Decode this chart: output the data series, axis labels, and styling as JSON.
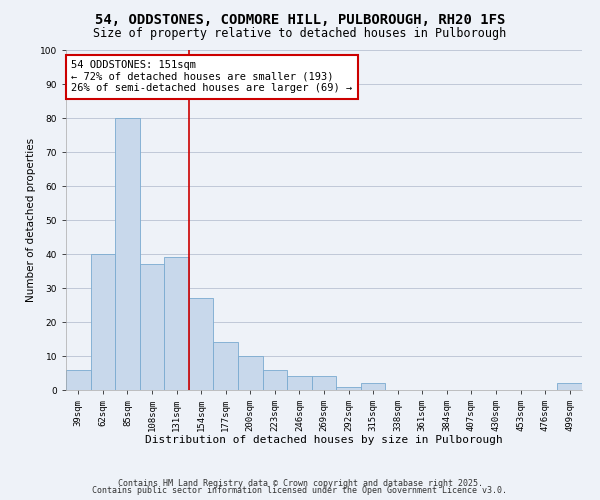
{
  "title": "54, ODDSTONES, CODMORE HILL, PULBOROUGH, RH20 1FS",
  "subtitle": "Size of property relative to detached houses in Pulborough",
  "xlabel": "Distribution of detached houses by size in Pulborough",
  "ylabel": "Number of detached properties",
  "bar_color": "#c8d8eb",
  "bar_edge_color": "#7aaad0",
  "categories": [
    "39sqm",
    "62sqm",
    "85sqm",
    "108sqm",
    "131sqm",
    "154sqm",
    "177sqm",
    "200sqm",
    "223sqm",
    "246sqm",
    "269sqm",
    "292sqm",
    "315sqm",
    "338sqm",
    "361sqm",
    "384sqm",
    "407sqm",
    "430sqm",
    "453sqm",
    "476sqm",
    "499sqm"
  ],
  "values": [
    6,
    40,
    80,
    37,
    39,
    27,
    14,
    10,
    6,
    4,
    4,
    1,
    2,
    0,
    0,
    0,
    0,
    0,
    0,
    0,
    2
  ],
  "vline_color": "#cc0000",
  "annotation_line1": "54 ODDSTONES: 151sqm",
  "annotation_line2": "← 72% of detached houses are smaller (193)",
  "annotation_line3": "26% of semi-detached houses are larger (69) →",
  "annotation_box_color": "#ffffff",
  "annotation_box_edge_color": "#cc0000",
  "ylim": [
    0,
    100
  ],
  "yticks": [
    0,
    10,
    20,
    30,
    40,
    50,
    60,
    70,
    80,
    90,
    100
  ],
  "grid_color": "#c0c8d8",
  "bg_color": "#eef2f8",
  "footer1": "Contains HM Land Registry data © Crown copyright and database right 2025.",
  "footer2": "Contains public sector information licensed under the Open Government Licence v3.0.",
  "title_fontsize": 10,
  "subtitle_fontsize": 8.5,
  "xlabel_fontsize": 8,
  "ylabel_fontsize": 7.5,
  "tick_fontsize": 6.5,
  "annotation_fontsize": 7.5,
  "footer_fontsize": 6
}
